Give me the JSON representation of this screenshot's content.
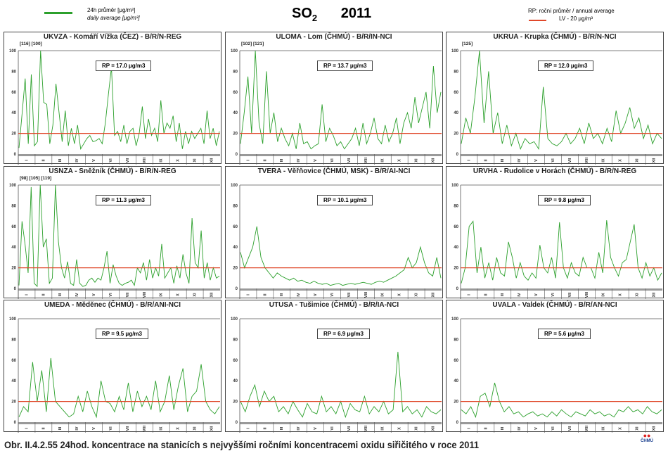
{
  "header": {
    "title_main": "SO",
    "title_sub": "2",
    "year": "2011",
    "legend_green_line1": "24h průměr [μg/m³]",
    "legend_green_line2": "daily average [μg/m³]",
    "legend_rp": "RP: roční průměr / annual average",
    "legend_lv": "LV  - 20 μg/m³",
    "colors": {
      "daily": "#2ca02c",
      "limit": "#e0482a"
    }
  },
  "caption": "Obr. II.4.2.55  24hod. koncentrace na stanicích s nejvyššími ročními koncentracemi oxidu siřičitého v roce 2011",
  "logo_text": "ČHMÚ",
  "chart_data": {
    "type": "line",
    "ylim": [
      0,
      100
    ],
    "yticks": [
      "0",
      "20",
      "40",
      "60",
      "80",
      "100"
    ],
    "months": [
      "I",
      "II",
      "III",
      "IV",
      "V",
      "VI",
      "VII",
      "VIII",
      "IX",
      "X",
      "XI",
      "XII"
    ],
    "limit_value": 20,
    "panels": [
      {
        "title": "UKVZA - Komáří Vížka (ČEZ) - B/R/N-REG",
        "annot": "[116] [100]",
        "rp": "RP = 17.0 μg/m3",
        "values": [
          6,
          39,
          73,
          10,
          77,
          8,
          12,
          100,
          50,
          48,
          10,
          28,
          68,
          40,
          12,
          42,
          8,
          25,
          10,
          28,
          5,
          10,
          15,
          18,
          12,
          13,
          15,
          10,
          30,
          58,
          84,
          18,
          22,
          12,
          28,
          10,
          22,
          25,
          8,
          20,
          46,
          15,
          34,
          18,
          25,
          12,
          52,
          20,
          30,
          25,
          37,
          12,
          30,
          5,
          22,
          10,
          22,
          15,
          20,
          25,
          10,
          42,
          15,
          25,
          8,
          22
        ]
      },
      {
        "title": "ULOMA - Lom (ČHMÚ) - B/R/IN-NCI",
        "annot": "[102] [121]",
        "rp": "RP = 13.7 μg/m3",
        "values": [
          10,
          40,
          75,
          20,
          100,
          30,
          10,
          80,
          20,
          40,
          12,
          25,
          15,
          8,
          20,
          5,
          30,
          10,
          12,
          5,
          8,
          10,
          48,
          12,
          25,
          18,
          8,
          12,
          5,
          10,
          15,
          25,
          8,
          30,
          10,
          20,
          35,
          15,
          10,
          28,
          12,
          20,
          35,
          10,
          30,
          40,
          25,
          55,
          30,
          45,
          60,
          25,
          85,
          40,
          60
        ]
      },
      {
        "title": "UKRUA - Krupka (ČHMÚ) - B/R/N-NCI",
        "annot": "[125]",
        "rp": "RP = 12.0 μg/m3",
        "values": [
          10,
          35,
          20,
          55,
          100,
          30,
          80,
          20,
          40,
          10,
          28,
          8,
          20,
          5,
          15,
          10,
          12,
          5,
          65,
          15,
          10,
          8,
          12,
          20,
          10,
          15,
          25,
          10,
          30,
          15,
          20,
          10,
          25,
          12,
          42,
          20,
          30,
          45,
          25,
          35,
          15,
          28,
          10,
          20,
          15
        ]
      },
      {
        "title": "USNZA - Sněžník (ČHMÚ) - B/R/N-REG",
        "annot": "[98] [105] [119]",
        "rp": "RP = 11.3 μg/m3",
        "values": [
          3,
          65,
          43,
          15,
          98,
          5,
          2,
          100,
          40,
          48,
          5,
          10,
          100,
          45,
          20,
          10,
          26,
          5,
          3,
          28,
          5,
          2,
          3,
          8,
          10,
          6,
          10,
          8,
          20,
          36,
          5,
          23,
          12,
          5,
          3,
          5,
          6,
          8,
          3,
          20,
          15,
          25,
          8,
          28,
          10,
          20,
          12,
          43,
          10,
          15,
          20,
          5,
          22,
          10,
          33,
          15,
          5,
          68,
          25,
          20,
          56,
          10,
          25,
          8,
          20,
          10,
          12
        ]
      },
      {
        "title": "TVERA - Věřňovice (ČHMÚ, MSK) - B/R/AI-NCI",
        "annot": "",
        "rp": "RP = 10.1 μg/m3",
        "values": [
          35,
          20,
          30,
          40,
          60,
          30,
          20,
          15,
          10,
          15,
          12,
          10,
          8,
          10,
          7,
          8,
          6,
          5,
          7,
          5,
          4,
          5,
          3,
          4,
          5,
          3,
          4,
          5,
          4,
          5,
          6,
          5,
          4,
          6,
          7,
          6,
          8,
          10,
          12,
          15,
          18,
          30,
          20,
          25,
          40,
          25,
          15,
          12,
          30,
          10
        ]
      },
      {
        "title": "URVHA - Rudolice v Horách (ČHMÚ) - B/R/N-REG",
        "annot": "",
        "rp": "RP = 9.8 μg/m3",
        "values": [
          5,
          20,
          60,
          65,
          15,
          40,
          10,
          25,
          8,
          30,
          15,
          12,
          45,
          30,
          10,
          25,
          12,
          8,
          15,
          10,
          42,
          20,
          15,
          30,
          10,
          64,
          20,
          10,
          25,
          15,
          12,
          30,
          20,
          20,
          10,
          35,
          15,
          66,
          30,
          20,
          12,
          25,
          28,
          45,
          62,
          20,
          10,
          25,
          12,
          20,
          8,
          15
        ]
      },
      {
        "title": "UMEDA - Měděnec (ČHMÚ) - B/R/ANI-NCI",
        "annot": "",
        "rp": "RP = 9.5 μg/m3",
        "values": [
          5,
          15,
          10,
          58,
          20,
          50,
          10,
          62,
          20,
          15,
          10,
          5,
          8,
          25,
          10,
          30,
          15,
          5,
          40,
          20,
          18,
          10,
          25,
          12,
          38,
          10,
          30,
          15,
          25,
          12,
          40,
          10,
          20,
          45,
          12,
          35,
          52,
          10,
          25,
          30,
          56,
          20,
          12,
          8,
          15
        ]
      },
      {
        "title": "UTUSA - Tušimice (ČHMÚ) - B/R/IA-NCI",
        "annot": "",
        "rp": "RP = 6.9 μg/m3",
        "values": [
          20,
          10,
          25,
          36,
          15,
          30,
          20,
          25,
          10,
          15,
          8,
          20,
          12,
          5,
          18,
          10,
          8,
          25,
          10,
          15,
          8,
          20,
          5,
          18,
          12,
          10,
          25,
          8,
          15,
          10,
          20,
          8,
          12,
          68,
          10,
          15,
          8,
          12,
          5,
          15,
          10,
          8,
          12
        ]
      },
      {
        "title": "UVALA - Valdek (ČHMÚ) - B/R/AN-NCI",
        "annot": "",
        "rp": "RP = 5.6 μg/m3",
        "values": [
          12,
          8,
          15,
          5,
          25,
          28,
          15,
          38,
          20,
          10,
          15,
          8,
          10,
          5,
          8,
          10,
          6,
          8,
          5,
          10,
          6,
          12,
          8,
          5,
          10,
          8,
          6,
          12,
          8,
          10,
          6,
          8,
          5,
          12,
          10,
          15,
          10,
          12,
          8,
          15,
          10,
          8,
          12
        ]
      }
    ]
  }
}
